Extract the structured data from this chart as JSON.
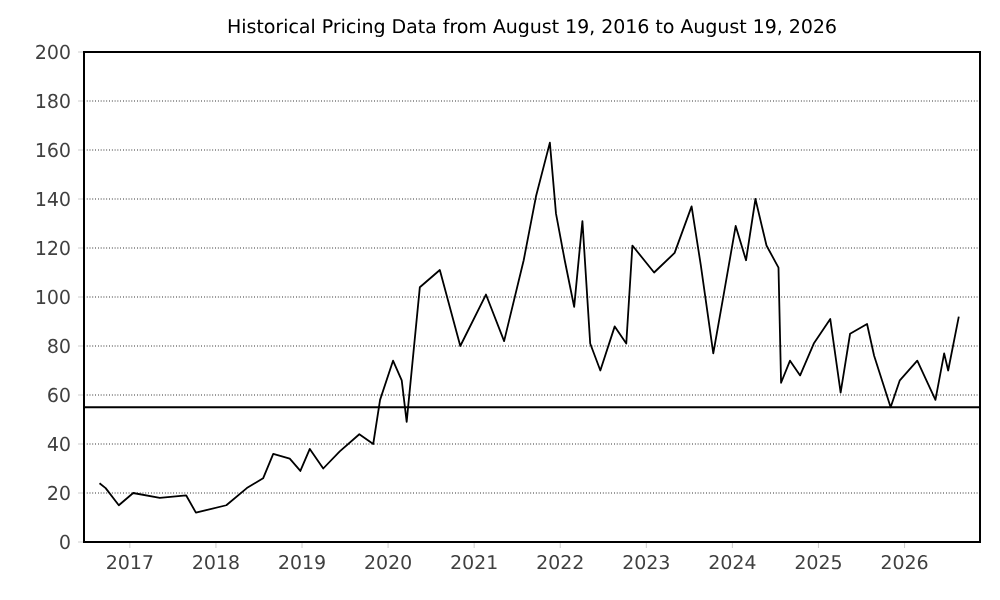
{
  "chart_data": {
    "type": "line",
    "title": "Historical Pricing Data from August 19, 2016 to August 19, 2026",
    "x": [
      "2016-08-25",
      "2016-09-20",
      "2016-11-15",
      "2017-01-15",
      "2017-05-08",
      "2017-08-28",
      "2017-10-08",
      "2018-02-14",
      "2018-05-12",
      "2018-07-20",
      "2018-09-01",
      "2018-11-10",
      "2018-12-25",
      "2019-02-03",
      "2019-04-01",
      "2019-06-10",
      "2019-09-01",
      "2019-10-30",
      "2019-11-28",
      "2020-01-22",
      "2020-02-28",
      "2020-03-20",
      "2020-05-15",
      "2020-08-08",
      "2020-11-03",
      "2021-02-20",
      "2021-05-08",
      "2021-07-30",
      "2021-09-20",
      "2021-11-18",
      "2021-12-14",
      "2022-01-20",
      "2022-03-01",
      "2022-04-05",
      "2022-05-08",
      "2022-06-20",
      "2022-08-20",
      "2022-10-08",
      "2022-11-03",
      "2023-02-03",
      "2023-05-01",
      "2023-07-12",
      "2023-08-20",
      "2023-10-12",
      "2023-11-25",
      "2024-01-15",
      "2024-02-28",
      "2024-04-08",
      "2024-05-25",
      "2024-07-15",
      "2024-07-26",
      "2024-09-02",
      "2024-10-15",
      "2024-12-12",
      "2025-02-20",
      "2025-04-05",
      "2025-05-15",
      "2025-07-26",
      "2025-08-25",
      "2025-11-03",
      "2025-12-12",
      "2026-02-24",
      "2026-05-12",
      "2026-06-18",
      "2026-07-05",
      "2026-08-19"
    ],
    "series": [
      {
        "color": "#000000",
        "values": [
          24,
          22,
          15,
          20,
          18,
          19,
          12,
          15,
          22,
          26,
          36,
          34,
          29,
          38,
          30,
          37,
          44,
          40,
          58,
          74,
          66,
          49,
          104,
          111,
          80,
          101,
          82,
          115,
          141,
          163,
          134,
          115,
          96,
          131,
          81,
          70,
          88,
          81,
          121,
          110,
          118,
          137,
          113,
          77,
          101,
          129,
          115,
          140,
          121,
          112,
          65,
          74,
          68,
          81,
          91,
          61,
          85,
          89,
          76,
          55,
          66,
          74,
          58,
          77,
          70,
          92
        ]
      }
    ],
    "xlim": [
      "2016-06-20",
      "2026-11-17"
    ],
    "xticks": [
      {
        "value": "2017",
        "label": "2017"
      },
      {
        "value": "2018",
        "label": "2018"
      },
      {
        "value": "2019",
        "label": "2019"
      },
      {
        "value": "2020",
        "label": "2020"
      },
      {
        "value": "2021",
        "label": "2021"
      },
      {
        "value": "2022",
        "label": "2022"
      },
      {
        "value": "2023",
        "label": "2023"
      },
      {
        "value": "2024",
        "label": "2024"
      },
      {
        "value": "2025",
        "label": "2025"
      },
      {
        "value": "2026",
        "label": "2026"
      }
    ],
    "ylim": [
      0,
      200
    ],
    "yticks": [
      0,
      20,
      40,
      60,
      80,
      100,
      120,
      140,
      160,
      180,
      200
    ],
    "grid": "y",
    "ref_lines": [
      {
        "axis": "y",
        "value": 55,
        "color": "#000000",
        "line_style": "solid"
      }
    ]
  }
}
